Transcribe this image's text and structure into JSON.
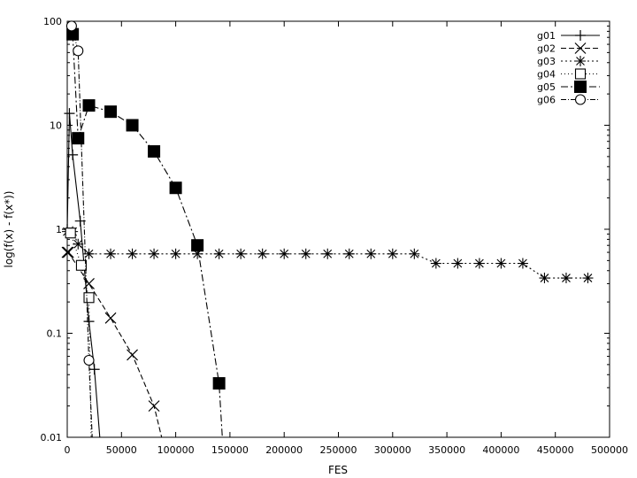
{
  "chart_data": {
    "type": "line",
    "title": "",
    "xlabel": "FES",
    "ylabel": "log(f(x) - f(x*))",
    "xlim": [
      0,
      500000
    ],
    "ylim": [
      0.01,
      100
    ],
    "yscale": "log",
    "grid": false,
    "legend_position": "top-right",
    "x_ticks": [
      0,
      50000,
      100000,
      150000,
      200000,
      250000,
      300000,
      350000,
      400000,
      450000,
      500000
    ],
    "x_tick_labels": [
      "0",
      "50000",
      "100000",
      "150000",
      "200000",
      "250000",
      "300000",
      "350000",
      "400000",
      "450000",
      "500000"
    ],
    "y_ticks": [
      0.01,
      0.1,
      1,
      10,
      100
    ],
    "y_tick_labels": [
      "0.01",
      "0.1",
      "1",
      "10",
      "100"
    ],
    "series": [
      {
        "name": "g01",
        "marker": "plus",
        "dash": "",
        "color": "#000000",
        "x": [
          0,
          2000,
          5000,
          12000,
          20000,
          25000,
          30000
        ],
        "y": [
          1.0,
          13,
          5.2,
          1.2,
          0.13,
          0.045,
          0.01
        ]
      },
      {
        "name": "g02",
        "marker": "x",
        "dash": "6,3",
        "color": "#000000",
        "x": [
          0,
          1000,
          20000,
          40000,
          60000,
          80000,
          87000
        ],
        "y": [
          0.6,
          0.6,
          0.3,
          0.14,
          0.062,
          0.02,
          0.01
        ]
      },
      {
        "name": "g03",
        "marker": "asterisk",
        "dash": "2,3",
        "color": "#000000",
        "x": [
          0,
          5000,
          10000,
          20000,
          40000,
          60000,
          80000,
          100000,
          120000,
          140000,
          160000,
          180000,
          200000,
          220000,
          240000,
          260000,
          280000,
          300000,
          320000,
          340000,
          360000,
          380000,
          400000,
          420000,
          440000,
          460000,
          480000
        ],
        "y": [
          0.95,
          0.95,
          0.72,
          0.58,
          0.58,
          0.58,
          0.58,
          0.58,
          0.58,
          0.58,
          0.58,
          0.58,
          0.58,
          0.58,
          0.58,
          0.58,
          0.58,
          0.58,
          0.58,
          0.47,
          0.47,
          0.47,
          0.47,
          0.47,
          0.34,
          0.34,
          0.34
        ]
      },
      {
        "name": "g04",
        "marker": "square-open",
        "dash": "1,3",
        "color": "#000000",
        "x": [
          3000,
          13000,
          20000,
          22000
        ],
        "y": [
          0.92,
          0.45,
          0.22,
          0.01
        ]
      },
      {
        "name": "g05",
        "marker": "square-filled",
        "dash": "8,3,2,3",
        "color": "#000000",
        "x": [
          5000,
          10000,
          20000,
          40000,
          60000,
          80000,
          100000,
          120000,
          140000,
          143000
        ],
        "y": [
          75,
          7.5,
          15.5,
          13.5,
          10,
          5.6,
          2.5,
          0.7,
          0.033,
          0.01
        ]
      },
      {
        "name": "g06",
        "marker": "circle-open",
        "dash": "6,2,1,2",
        "color": "#000000",
        "x": [
          4000,
          10000,
          20000,
          23000
        ],
        "y": [
          90,
          52,
          0.055,
          0.01
        ]
      }
    ]
  }
}
